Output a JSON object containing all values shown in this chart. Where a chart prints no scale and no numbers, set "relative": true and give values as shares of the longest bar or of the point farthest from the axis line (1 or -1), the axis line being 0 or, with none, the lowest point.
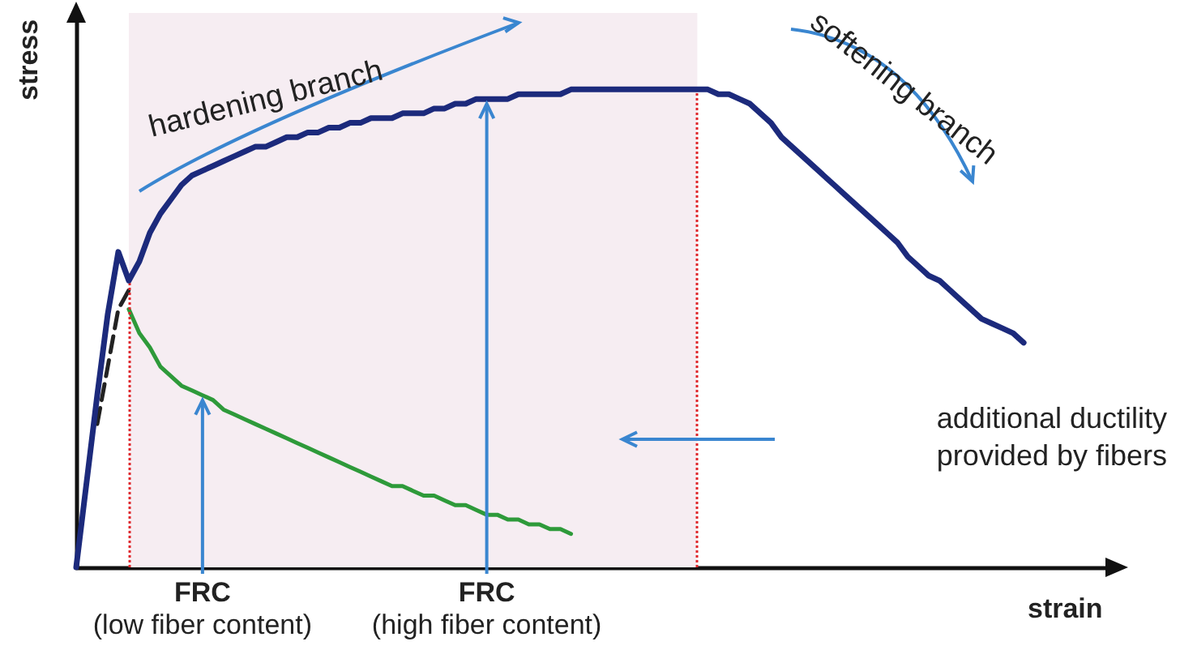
{
  "chart_data": {
    "type": "line",
    "relative": true,
    "xlabel": "strain",
    "ylabel": "stress",
    "categories": [
      null,
      null,
      null,
      null,
      null,
      null,
      null,
      null,
      null,
      null,
      null,
      null,
      null,
      null,
      null,
      null,
      null,
      null,
      null,
      null,
      null,
      null,
      null,
      null,
      null,
      null,
      null,
      null,
      null,
      null,
      null,
      null,
      null,
      null,
      null,
      null,
      null,
      null,
      null,
      null,
      null,
      null,
      null,
      null,
      null,
      null,
      null,
      null,
      null,
      null,
      null,
      null,
      null,
      null,
      null,
      null,
      null,
      null,
      null,
      null,
      null,
      null,
      null,
      null,
      null,
      null,
      null,
      null,
      null,
      null,
      null,
      null,
      null,
      null,
      null,
      null,
      null,
      null,
      null,
      null,
      null,
      null,
      null,
      null,
      null,
      null,
      null,
      null,
      null,
      null,
      null
    ],
    "series": [
      {
        "color": "#1c2a7c",
        "values": [
          0,
          0.18,
          0.36,
          0.53,
          0.66,
          0.6,
          0.64,
          0.7,
          0.74,
          0.77,
          0.8,
          0.82,
          0.83,
          0.84,
          0.85,
          0.86,
          0.87,
          0.88,
          0.88,
          0.89,
          0.9,
          0.9,
          0.91,
          0.91,
          0.92,
          0.92,
          0.93,
          0.93,
          0.94,
          0.94,
          0.94,
          0.95,
          0.95,
          0.95,
          0.96,
          0.96,
          0.97,
          0.97,
          0.98,
          0.98,
          0.98,
          0.98,
          0.99,
          0.99,
          0.99,
          0.99,
          0.99,
          1,
          1,
          1,
          1,
          1,
          1,
          1,
          1,
          1,
          1,
          1,
          1,
          1,
          1,
          0.99,
          0.99,
          0.98,
          0.97,
          0.95,
          0.93,
          0.9,
          0.88,
          0.86,
          0.84,
          0.82,
          0.8,
          0.78,
          0.76,
          0.74,
          0.72,
          0.7,
          0.68,
          0.65,
          0.63,
          0.61,
          0.6,
          0.58,
          0.56,
          0.54,
          0.52,
          0.51,
          0.5,
          0.49,
          0.47
        ]
      },
      {
        "color": "#2e9a3a",
        "values": [
          null,
          null,
          null,
          null,
          null,
          0.54,
          0.49,
          0.46,
          0.42,
          0.4,
          0.38,
          0.37,
          0.36,
          0.35,
          0.33,
          0.32,
          0.31,
          0.3,
          0.29,
          0.28,
          0.27,
          0.26,
          0.25,
          0.24,
          0.23,
          0.22,
          0.21,
          0.2,
          0.19,
          0.18,
          0.17,
          0.17,
          0.16,
          0.15,
          0.15,
          0.14,
          0.13,
          0.13,
          0.12,
          0.11,
          0.11,
          0.1,
          0.1,
          0.09,
          0.09,
          0.08,
          0.08,
          0.07,
          null,
          null,
          null,
          null,
          null,
          null,
          null,
          null,
          null,
          null,
          null,
          null,
          null,
          null,
          null,
          null,
          null,
          null,
          null,
          null,
          null,
          null,
          null,
          null,
          null,
          null,
          null,
          null,
          null,
          null,
          null,
          null,
          null,
          null,
          null,
          null,
          null,
          null,
          null,
          null,
          null,
          null,
          null
        ]
      },
      {
        "color": "#222222",
        "line_style": "dashed",
        "values": [
          null,
          null,
          0.3,
          0.42,
          0.54,
          0.58,
          null,
          null,
          null,
          null,
          null,
          null,
          null,
          null,
          null,
          null,
          null,
          null,
          null,
          null,
          null,
          null,
          null,
          null,
          null,
          null,
          null,
          null,
          null,
          null,
          null,
          null,
          null,
          null,
          null,
          null,
          null,
          null,
          null,
          null,
          null,
          null,
          null,
          null,
          null,
          null,
          null,
          null,
          null,
          null,
          null,
          null,
          null,
          null,
          null,
          null,
          null,
          null,
          null,
          null,
          null,
          null,
          null,
          null,
          null,
          null,
          null,
          null,
          null,
          null,
          null,
          null,
          null,
          null,
          null,
          null,
          null,
          null,
          null,
          null,
          null,
          null,
          null,
          null,
          null,
          null,
          null,
          null,
          null,
          null,
          null
        ]
      }
    ],
    "annotations": [
      "hardening branch",
      "softening branch",
      "additional ductility\nprovided by fibers",
      "FRC\n(low fiber content)",
      "FRC\n(high fiber content)"
    ]
  }
}
